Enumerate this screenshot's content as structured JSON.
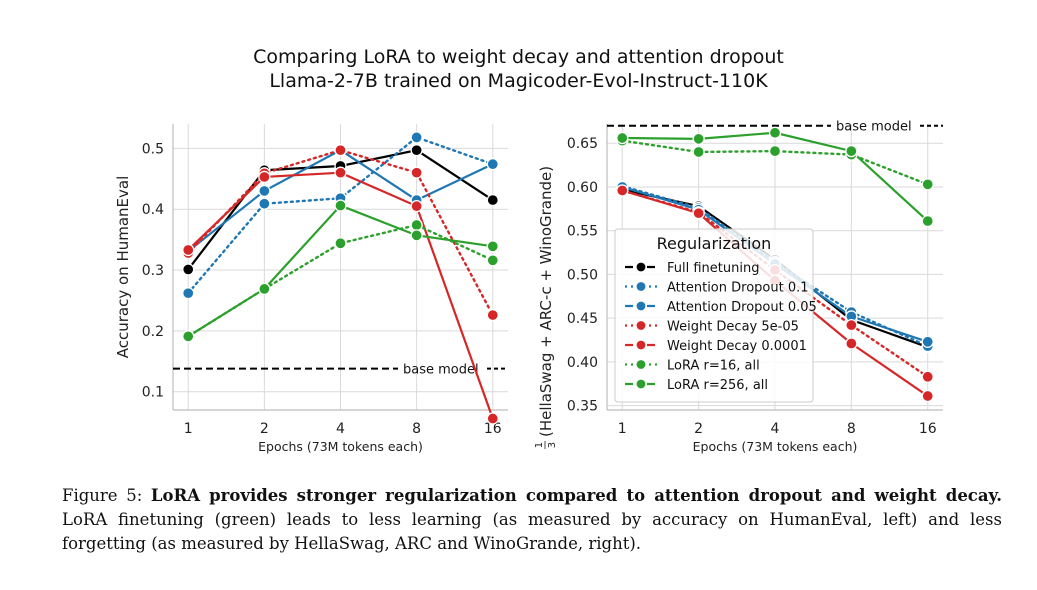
{
  "title_line1": "Comparing LoRA to weight decay and attention dropout",
  "title_line2": "Llama-2-7B trained on Magicoder-Evol-Instruct-110K",
  "caption": {
    "label": "Figure 5:",
    "bold": "LoRA provides stronger regularization compared to attention dropout and weight decay.",
    "text": "LoRA finetuning (green) leads to less learning (as measured by accuracy on HumanEval, left) and less forgetting (as measured by HellaSwag, ARC and WinoGrande, right)."
  },
  "colors": {
    "black": "#000000",
    "blue": "#1f77b4",
    "red": "#d62728",
    "green": "#2ca02c",
    "grid": "#d9d9d9"
  },
  "chart_data": [
    {
      "type": "line",
      "x": [
        1,
        2,
        4,
        8,
        16
      ],
      "xscale": "log2",
      "xticklabels": [
        "1",
        "2",
        "4",
        "8",
        "16"
      ],
      "xlabel": "Epochs (73M tokens each)",
      "ylabel": "Accuracy on HumanEval",
      "yticks": [
        0.1,
        0.2,
        0.3,
        0.4,
        0.5
      ],
      "ylim": [
        0.07,
        0.54
      ],
      "baseline": {
        "label": "base model",
        "value": 0.138
      },
      "grid": true,
      "series": [
        {
          "name": "Full finetuning",
          "color": "#000000",
          "style": "solid",
          "values": [
            0.301,
            0.464,
            0.471,
            0.497,
            0.415
          ]
        },
        {
          "name": "Attention Dropout 0.1",
          "color": "#1f77b4",
          "style": "dotted",
          "values": [
            0.262,
            0.409,
            0.418,
            0.518,
            0.474
          ]
        },
        {
          "name": "Attention Dropout 0.05",
          "color": "#1f77b4",
          "style": "solid",
          "values": [
            0.331,
            0.43,
            0.497,
            0.415,
            0.474
          ]
        },
        {
          "name": "Weight Decay 5e-05",
          "color": "#d62728",
          "style": "dotted",
          "values": [
            0.328,
            0.459,
            0.497,
            0.46,
            0.226
          ]
        },
        {
          "name": "Weight Decay 0.0001",
          "color": "#d62728",
          "style": "solid",
          "values": [
            0.333,
            0.453,
            0.46,
            0.405,
            0.056
          ]
        },
        {
          "name": "LoRA r=16, all",
          "color": "#2ca02c",
          "style": "dotted",
          "values": [
            0.191,
            0.269,
            0.344,
            0.374,
            0.316
          ]
        },
        {
          "name": "LoRA r=256, all",
          "color": "#2ca02c",
          "style": "solid",
          "values": [
            0.191,
            0.269,
            0.406,
            0.357,
            0.339
          ]
        }
      ]
    },
    {
      "type": "line",
      "x": [
        1,
        2,
        4,
        8,
        16
      ],
      "xscale": "log2",
      "xticklabels": [
        "1",
        "2",
        "4",
        "8",
        "16"
      ],
      "xlabel": "Epochs (73M tokens each)",
      "ylabel_frac_num": "1",
      "ylabel_frac_den": "3",
      "ylabel": "(HellaSwag + ARC-c + WinoGrande)",
      "yticks": [
        0.35,
        0.4,
        0.45,
        0.5,
        0.55,
        0.6,
        0.65
      ],
      "yticklabels": [
        "0.35",
        "0.40",
        "0.45",
        "0.50",
        "0.55",
        "0.60",
        "0.65"
      ],
      "ylim": [
        0.345,
        0.672
      ],
      "baseline": {
        "label": "base model",
        "value": 0.67
      },
      "grid": true,
      "legend": {
        "title": "Regularization",
        "placement": "lower-left"
      },
      "series": [
        {
          "name": "Full finetuning",
          "color": "#000000",
          "style": "solid",
          "values": [
            0.597,
            0.578,
            0.517,
            0.448,
            0.417
          ]
        },
        {
          "name": "Attention Dropout 0.1",
          "color": "#1f77b4",
          "style": "dotted",
          "values": [
            0.601,
            0.576,
            0.514,
            0.457,
            0.418
          ]
        },
        {
          "name": "Attention Dropout 0.05",
          "color": "#1f77b4",
          "style": "solid",
          "values": [
            0.6,
            0.574,
            0.512,
            0.452,
            0.423
          ]
        },
        {
          "name": "Weight Decay 5e-05",
          "color": "#d62728",
          "style": "dotted",
          "values": [
            0.596,
            0.571,
            0.505,
            0.442,
            0.383
          ]
        },
        {
          "name": "Weight Decay 0.0001",
          "color": "#d62728",
          "style": "solid",
          "values": [
            0.596,
            0.57,
            0.493,
            0.421,
            0.361
          ]
        },
        {
          "name": "LoRA r=16, all",
          "color": "#2ca02c",
          "style": "dotted",
          "values": [
            0.653,
            0.64,
            0.641,
            0.637,
            0.603
          ]
        },
        {
          "name": "LoRA r=256, all",
          "color": "#2ca02c",
          "style": "solid",
          "values": [
            0.656,
            0.655,
            0.662,
            0.641,
            0.561
          ]
        }
      ]
    }
  ]
}
